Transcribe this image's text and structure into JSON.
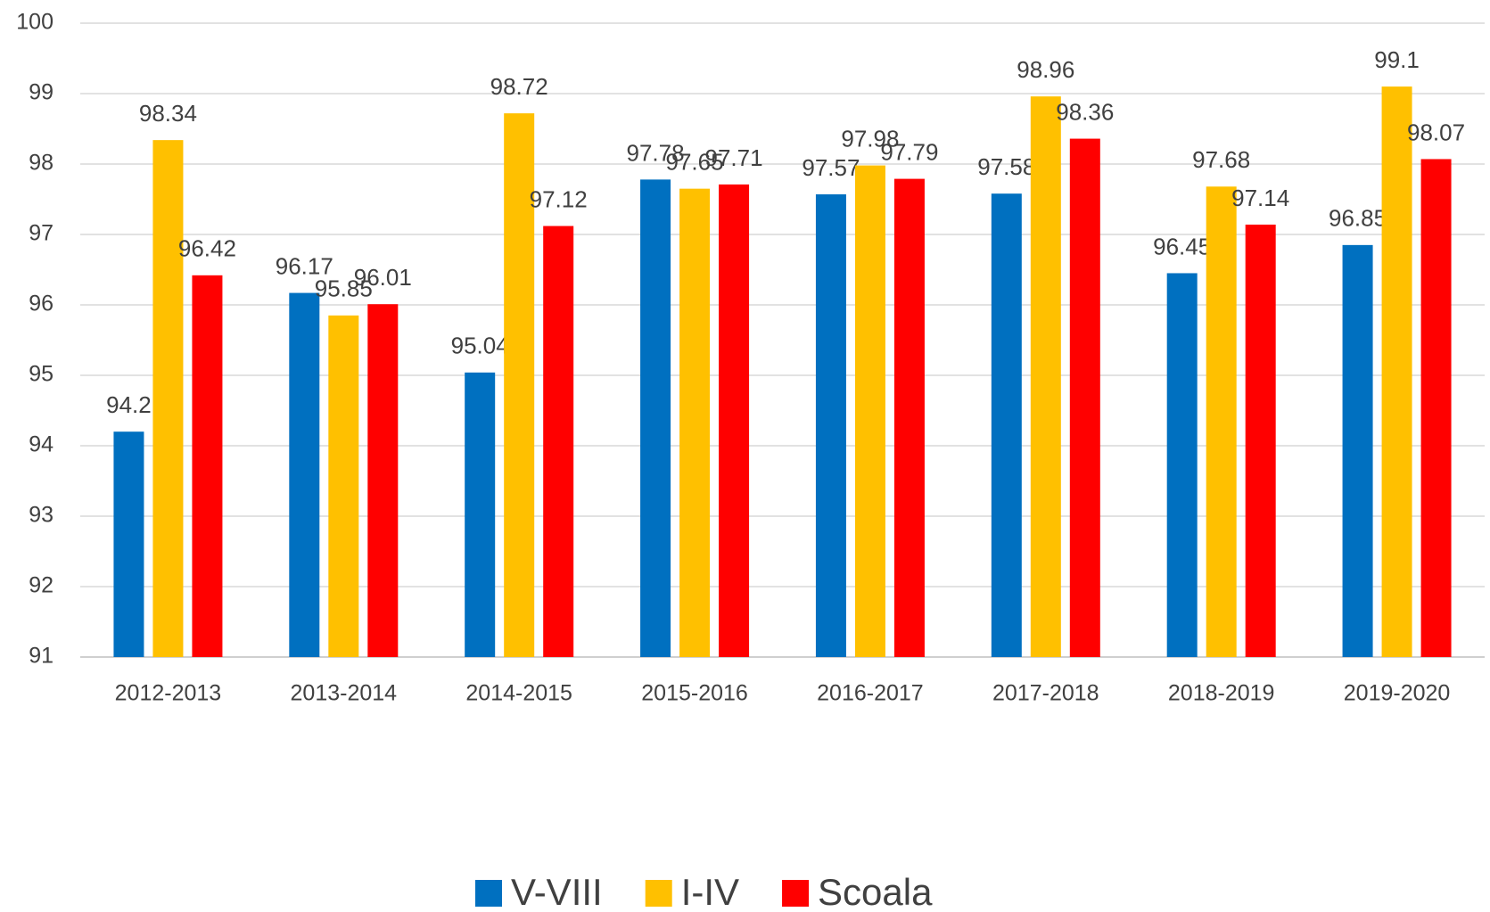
{
  "chart_data": {
    "type": "bar",
    "categories": [
      "2012-2013",
      "2013-2014",
      "2014-2015",
      "2015-2016",
      "2016-2017",
      "2017-2018",
      "2018-2019",
      "2019-2020"
    ],
    "series": [
      {
        "name": "V-VIII",
        "color": "#0070c0",
        "values": [
          94.2,
          96.17,
          95.04,
          97.78,
          97.57,
          97.58,
          96.45,
          96.85
        ]
      },
      {
        "name": "I-IV",
        "color": "#ffc000",
        "values": [
          98.34,
          95.85,
          98.72,
          97.65,
          97.98,
          98.96,
          97.68,
          99.1
        ]
      },
      {
        "name": "Scoala",
        "color": "#ff0000",
        "values": [
          96.42,
          96.01,
          97.12,
          97.71,
          97.79,
          98.36,
          97.14,
          98.07
        ]
      }
    ],
    "ylim": [
      91,
      100
    ],
    "yticks": [
      91,
      92,
      93,
      94,
      95,
      96,
      97,
      98,
      99,
      100
    ],
    "grid": true,
    "legend": "bottom"
  }
}
